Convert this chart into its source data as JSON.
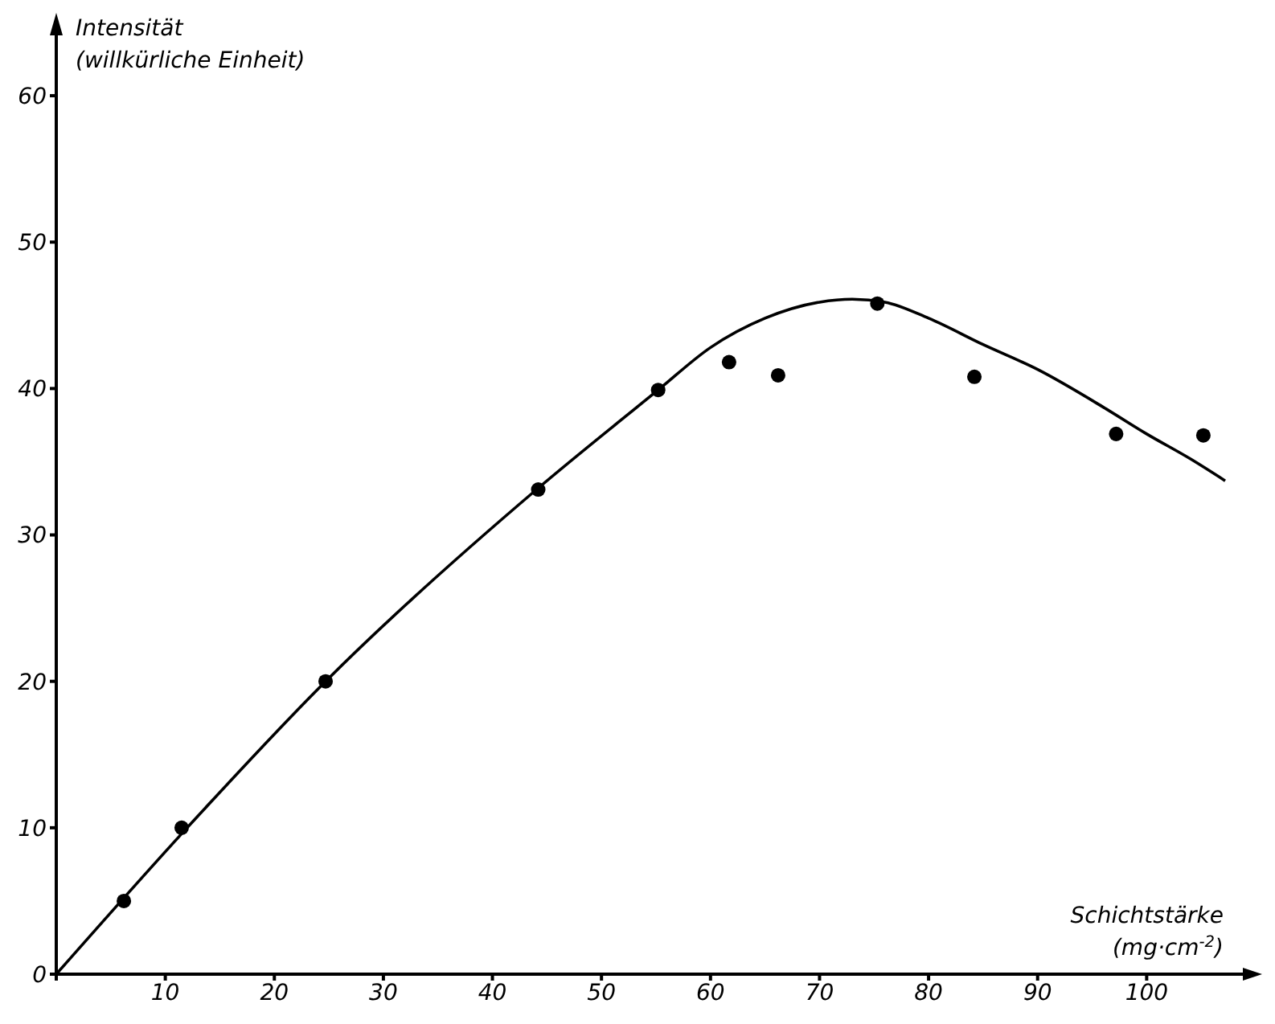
{
  "chart_data": {
    "type": "line",
    "xlabel": "Schichtstärke\n(mg·cm$^{-2}$)",
    "ylabel": "Intensität\n(willkürliche Einheit)",
    "xlim": [
      0,
      110
    ],
    "ylim": [
      0,
      65
    ],
    "xticks": [
      {
        "value": 0,
        "label": null
      },
      10,
      20,
      30,
      40,
      50,
      60,
      70,
      80,
      90,
      100
    ],
    "yticks": [
      0,
      10,
      20,
      30,
      40,
      50,
      60
    ],
    "grid": false,
    "series": [
      {
        "type": "scatter",
        "color": "#000000",
        "marker": "circle",
        "x": [
          6.2,
          11.5,
          24.7,
          44.2,
          55.2,
          61.7,
          66.2,
          75.3,
          84.2,
          97.2,
          105.2
        ],
        "values": [
          5,
          10,
          20,
          33.1,
          39.9,
          41.8,
          40.9,
          45.8,
          40.8,
          36.9,
          36.8
        ]
      },
      {
        "color": "#000000",
        "marker": "none",
        "line_style": "solid",
        "x": [
          0,
          12,
          24.7,
          44.2,
          55.2,
          60,
          65,
          70,
          73,
          76,
          80,
          85,
          90,
          96.3,
          100,
          104,
          107.2
        ],
        "values": [
          0,
          10,
          20,
          33.2,
          39.9,
          42.8,
          44.8,
          45.9,
          46.1,
          45.9,
          44.8,
          43,
          41.3,
          38.6,
          36.9,
          35.2,
          33.7
        ]
      }
    ]
  }
}
